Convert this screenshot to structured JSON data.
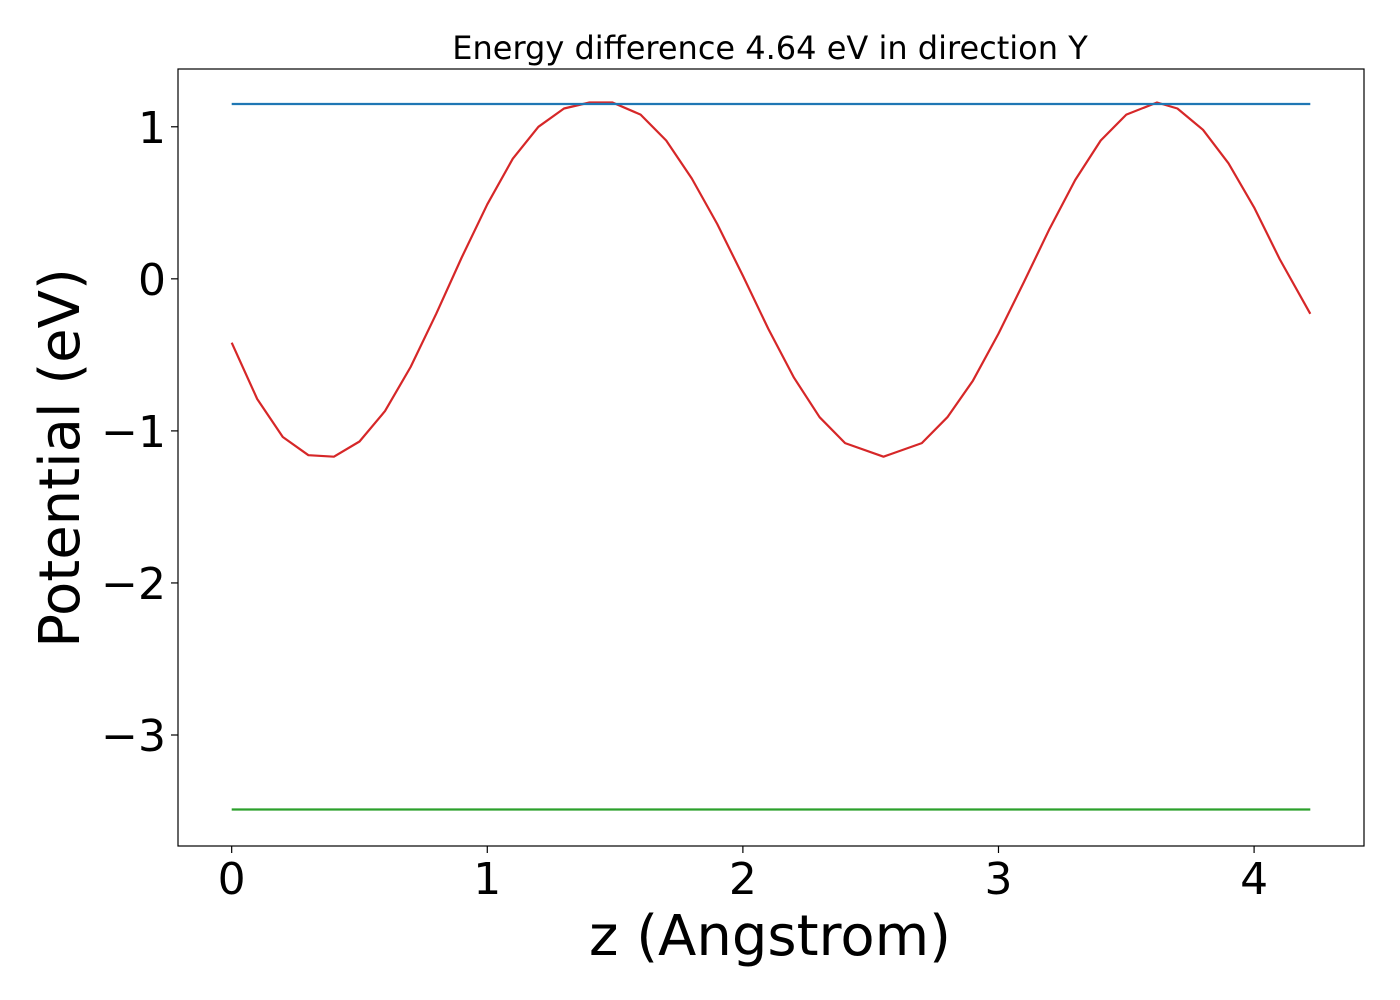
{
  "chart_data": {
    "type": "line",
    "title": "Energy difference 4.64 eV in direction Y",
    "xlabel": "z (Angstrom)",
    "ylabel": "Potential (eV)",
    "xlim": [
      -0.21,
      4.43
    ],
    "ylim": [
      -3.73,
      1.38
    ],
    "xticks": [
      0,
      1,
      2,
      3,
      4
    ],
    "xtick_labels": [
      "0",
      "1",
      "2",
      "3",
      "4"
    ],
    "yticks": [
      1,
      0,
      -1,
      -2,
      -3
    ],
    "ytick_labels": [
      "1",
      "0",
      "−1",
      "−2",
      "−3"
    ],
    "grid": false,
    "series": [
      {
        "color": "#d62728",
        "x": [
          0.0,
          0.1,
          0.2,
          0.3,
          0.4,
          0.5,
          0.6,
          0.7,
          0.8,
          0.9,
          1.0,
          1.1,
          1.2,
          1.3,
          1.4,
          1.49,
          1.6,
          1.7,
          1.8,
          1.9,
          2.0,
          2.1,
          2.2,
          2.3,
          2.4,
          2.55,
          2.7,
          2.8,
          2.9,
          3.0,
          3.1,
          3.2,
          3.3,
          3.4,
          3.5,
          3.62,
          3.7,
          3.8,
          3.9,
          4.0,
          4.1,
          4.22
        ],
        "y": [
          -0.42,
          -0.79,
          -1.04,
          -1.16,
          -1.17,
          -1.07,
          -0.87,
          -0.58,
          -0.23,
          0.14,
          0.49,
          0.79,
          1.0,
          1.12,
          1.16,
          1.16,
          1.08,
          0.91,
          0.66,
          0.36,
          0.02,
          -0.33,
          -0.65,
          -0.91,
          -1.08,
          -1.17,
          -1.08,
          -0.91,
          -0.67,
          -0.36,
          -0.02,
          0.33,
          0.65,
          0.91,
          1.08,
          1.16,
          1.12,
          0.98,
          0.76,
          0.47,
          0.13,
          -0.23
        ]
      },
      {
        "color": "#1f77b4",
        "x": [
          0.0,
          4.22
        ],
        "y": [
          1.15,
          1.15
        ]
      },
      {
        "color": "#2ca02c",
        "x": [
          0.0,
          4.22
        ],
        "y": [
          -3.49,
          -3.49
        ]
      }
    ]
  }
}
